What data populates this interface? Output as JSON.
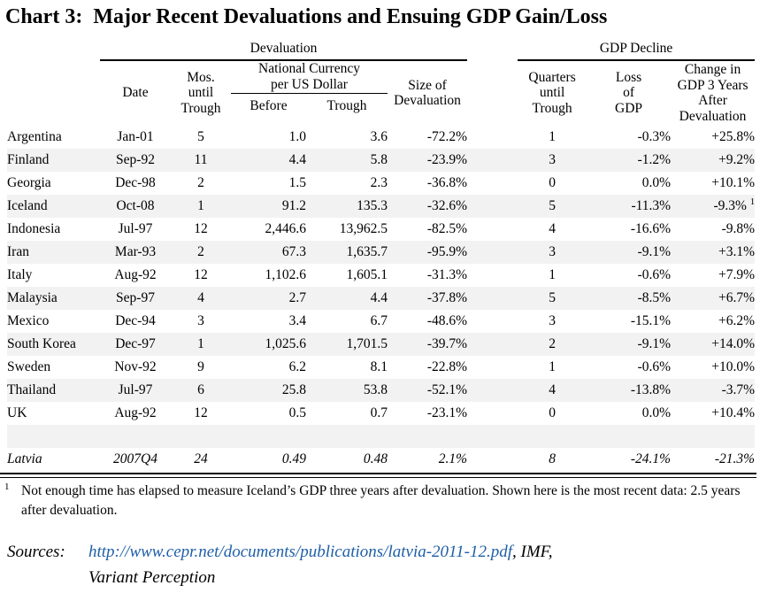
{
  "title": "Chart 3:  Major Recent Devaluations and Ensuing GDP Gain/Loss",
  "table": {
    "groups": {
      "devaluation": "Devaluation",
      "gdp_decline": "GDP Decline"
    },
    "headers": {
      "date": "Date",
      "mos_until_trough": "Mos. until Trough",
      "national_currency": "National Currency per US Dollar",
      "before": "Before",
      "trough": "Trough",
      "size_of_devaluation": "Size of Devaluation",
      "quarters_until_trough": "Quarters until Trough",
      "loss_of_gdp": "Loss of GDP",
      "change_in_gdp": "Change in GDP 3 Years After Devaluation"
    },
    "rows": [
      {
        "country": "Argentina",
        "date": "Jan-01",
        "mos": "5",
        "before": "1.0",
        "trough": "3.6",
        "size": "-72.2%",
        "quarters": "1",
        "loss": "-0.3%",
        "change": "+25.8%",
        "change_note": ""
      },
      {
        "country": "Finland",
        "date": "Sep-92",
        "mos": "11",
        "before": "4.4",
        "trough": "5.8",
        "size": "-23.9%",
        "quarters": "3",
        "loss": "-1.2%",
        "change": "+9.2%",
        "change_note": ""
      },
      {
        "country": "Georgia",
        "date": "Dec-98",
        "mos": "2",
        "before": "1.5",
        "trough": "2.3",
        "size": "-36.8%",
        "quarters": "0",
        "loss": "0.0%",
        "change": "+10.1%",
        "change_note": ""
      },
      {
        "country": "Iceland",
        "date": "Oct-08",
        "mos": "1",
        "before": "91.2",
        "trough": "135.3",
        "size": "-32.6%",
        "quarters": "5",
        "loss": "-11.3%",
        "change": "-9.3%",
        "change_note": "1"
      },
      {
        "country": "Indonesia",
        "date": "Jul-97",
        "mos": "12",
        "before": "2,446.6",
        "trough": "13,962.5",
        "size": "-82.5%",
        "quarters": "4",
        "loss": "-16.6%",
        "change": "-9.8%",
        "change_note": ""
      },
      {
        "country": "Iran",
        "date": "Mar-93",
        "mos": "2",
        "before": "67.3",
        "trough": "1,635.7",
        "size": "-95.9%",
        "quarters": "3",
        "loss": "-9.1%",
        "change": "+3.1%",
        "change_note": ""
      },
      {
        "country": "Italy",
        "date": "Aug-92",
        "mos": "12",
        "before": "1,102.6",
        "trough": "1,605.1",
        "size": "-31.3%",
        "quarters": "1",
        "loss": "-0.6%",
        "change": "+7.9%",
        "change_note": ""
      },
      {
        "country": "Malaysia",
        "date": "Sep-97",
        "mos": "4",
        "before": "2.7",
        "trough": "4.4",
        "size": "-37.8%",
        "quarters": "5",
        "loss": "-8.5%",
        "change": "+6.7%",
        "change_note": ""
      },
      {
        "country": "Mexico",
        "date": "Dec-94",
        "mos": "3",
        "before": "3.4",
        "trough": "6.7",
        "size": "-48.6%",
        "quarters": "3",
        "loss": "-15.1%",
        "change": "+6.2%",
        "change_note": ""
      },
      {
        "country": "South Korea",
        "date": "Dec-97",
        "mos": "1",
        "before": "1,025.6",
        "trough": "1,701.5",
        "size": "-39.7%",
        "quarters": "2",
        "loss": "-9.1%",
        "change": "+14.0%",
        "change_note": ""
      },
      {
        "country": "Sweden",
        "date": "Nov-92",
        "mos": "9",
        "before": "6.2",
        "trough": "8.1",
        "size": "-22.8%",
        "quarters": "1",
        "loss": "-0.6%",
        "change": "+10.0%",
        "change_note": ""
      },
      {
        "country": "Thailand",
        "date": "Jul-97",
        "mos": "6",
        "before": "25.8",
        "trough": "53.8",
        "size": "-52.1%",
        "quarters": "4",
        "loss": "-13.8%",
        "change": "-3.7%",
        "change_note": ""
      },
      {
        "country": "UK",
        "date": "Aug-92",
        "mos": "12",
        "before": "0.5",
        "trough": "0.7",
        "size": "-23.1%",
        "quarters": "0",
        "loss": "0.0%",
        "change": "+10.4%",
        "change_note": ""
      },
      {
        "country": "",
        "date": "",
        "mos": "",
        "before": "",
        "trough": "",
        "size": "",
        "quarters": "",
        "loss": "",
        "change": "",
        "change_note": "",
        "blank": true
      },
      {
        "country": "Latvia",
        "date": "2007Q4",
        "mos": "24",
        "before": "0.49",
        "trough": "0.48",
        "size": "2.1%",
        "quarters": "8",
        "loss": "-24.1%",
        "change": "-21.3%",
        "change_note": "",
        "italic": true
      }
    ]
  },
  "footnote": {
    "marker": "1",
    "text": "Not enough time has elapsed to measure Iceland’s GDP three years after devaluation. Shown here is the most recent data: 2.5 years after devaluation."
  },
  "sources": {
    "label": "Sources:",
    "link": "http://www.cepr.net/documents/publications/latvia-2011-12.pdf",
    "suffix": ", IMF,",
    "line2": "Variant Perception",
    "link_color": "#1f5fa8"
  }
}
